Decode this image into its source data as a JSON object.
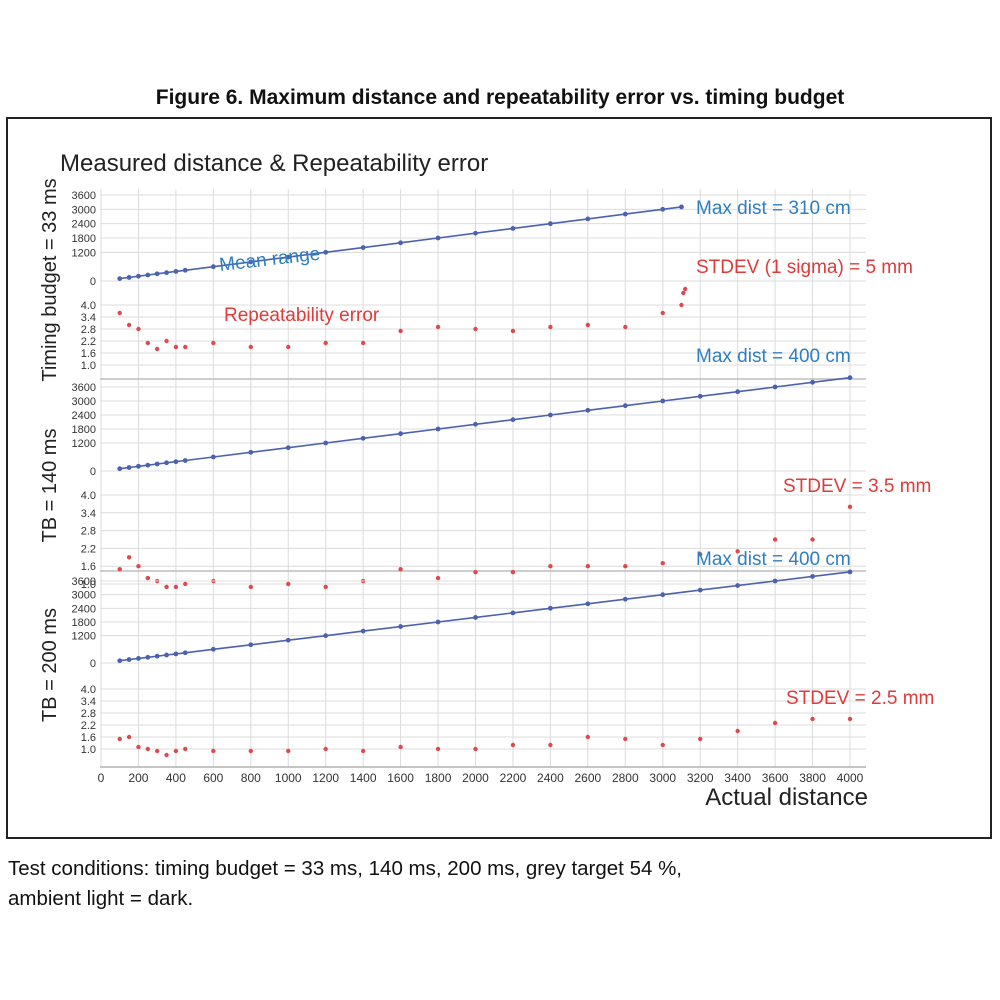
{
  "figure_caption": "Figure 6. Maximum distance and repeatability error vs. timing budget",
  "test_conditions": [
    "Test conditions: timing budget = 33 ms, 140 ms, 200 ms, grey target 54 %,",
    "ambient light = dark."
  ],
  "colors": {
    "range": "#4a62b0",
    "error": "#e0484f",
    "blue_text": "#2f7fc0",
    "red_text": "#e03a3a",
    "grid": "#dcdcdc"
  },
  "chart_data": {
    "type": "scatter",
    "title": "Measured distance & Repeatability error",
    "xlabel": "Actual distance",
    "x_ticks": [
      0,
      200,
      400,
      600,
      800,
      1000,
      1200,
      1400,
      1600,
      1800,
      2000,
      2200,
      2400,
      2600,
      2800,
      3000,
      3200,
      3400,
      3600,
      3800,
      4000
    ],
    "x_range": [
      0,
      4000
    ],
    "grid": true,
    "panels": [
      {
        "ylabel": "Timing budget = 33 ms",
        "range_ticks": [
          "3600",
          "3000",
          "2400",
          "1800",
          "1200",
          "0"
        ],
        "error_ticks": [
          "4.0",
          "3.4",
          "2.8",
          "2.2",
          "1.6",
          "1.0"
        ],
        "series": [
          {
            "label": "Mean range",
            "x": [
              100,
              150,
              200,
              250,
              300,
              350,
              400,
              450,
              600,
              800,
              1000,
              1200,
              1400,
              1600,
              1800,
              2000,
              2200,
              2400,
              2600,
              2800,
              3000,
              3100
            ],
            "y": [
              100,
              150,
              200,
              250,
              300,
              350,
              400,
              450,
              600,
              800,
              1000,
              1200,
              1400,
              1600,
              1800,
              2000,
              2200,
              2400,
              2600,
              2800,
              3000,
              3100
            ]
          },
          {
            "label": "Repeatability error",
            "x": [
              100,
              150,
              200,
              250,
              300,
              350,
              400,
              450,
              600,
              800,
              1000,
              1200,
              1400,
              1600,
              1800,
              2000,
              2200,
              2400,
              2600,
              2800,
              3000,
              3100,
              3110,
              3120
            ],
            "y": [
              3.6,
              3.0,
              2.8,
              2.1,
              1.8,
              2.2,
              1.9,
              1.9,
              2.1,
              1.9,
              1.9,
              2.1,
              2.1,
              2.7,
              2.9,
              2.8,
              2.7,
              2.9,
              3.0,
              2.9,
              3.6,
              4.0,
              4.6,
              4.8
            ]
          }
        ],
        "annotations": {
          "max_dist": "Max dist = 310 cm",
          "stdev": "STDEV (1 sigma) = 5 mm"
        }
      },
      {
        "ylabel": "TB = 140 ms",
        "range_ticks": [
          "3600",
          "3000",
          "2400",
          "1800",
          "1200",
          "0"
        ],
        "error_ticks": [
          "4.0",
          "3.4",
          "2.8",
          "2.2",
          "1.6",
          "1.0"
        ],
        "series": [
          {
            "x": [
              100,
              150,
              200,
              250,
              300,
              350,
              400,
              450,
              600,
              800,
              1000,
              1200,
              1400,
              1600,
              1800,
              2000,
              2200,
              2400,
              2600,
              2800,
              3000,
              3200,
              3400,
              3600,
              3800,
              4000
            ],
            "y": [
              100,
              150,
              200,
              250,
              300,
              350,
              400,
              450,
              600,
              800,
              1000,
              1200,
              1400,
              1600,
              1800,
              2000,
              2200,
              2400,
              2600,
              2800,
              3000,
              3200,
              3400,
              3600,
              3800,
              4000
            ]
          },
          {
            "x": [
              100,
              150,
              200,
              250,
              300,
              350,
              400,
              450,
              600,
              800,
              1000,
              1200,
              1400,
              1600,
              1800,
              2000,
              2200,
              2400,
              2600,
              2800,
              3000,
              3200,
              3400,
              3600,
              3800,
              4000
            ],
            "y": [
              1.5,
              1.9,
              1.6,
              1.2,
              1.1,
              0.9,
              0.9,
              1.0,
              1.1,
              0.9,
              1.0,
              0.9,
              1.1,
              1.5,
              1.2,
              1.4,
              1.4,
              1.6,
              1.6,
              1.6,
              1.7,
              2.0,
              2.1,
              2.5,
              2.5,
              3.6
            ]
          }
        ],
        "annotations": {
          "max_dist": "Max dist = 400 cm",
          "stdev": "STDEV = 3.5 mm"
        }
      },
      {
        "ylabel": "TB = 200 ms",
        "range_ticks": [
          "3600",
          "3000",
          "2400",
          "1800",
          "1200",
          "0"
        ],
        "error_ticks": [
          "4.0",
          "3.4",
          "2.8",
          "2.2",
          "1.6",
          "1.0"
        ],
        "series": [
          {
            "x": [
              100,
              150,
              200,
              250,
              300,
              350,
              400,
              450,
              600,
              800,
              1000,
              1200,
              1400,
              1600,
              1800,
              2000,
              2200,
              2400,
              2600,
              2800,
              3000,
              3200,
              3400,
              3600,
              3800,
              4000
            ],
            "y": [
              100,
              150,
              200,
              250,
              300,
              350,
              400,
              450,
              600,
              800,
              1000,
              1200,
              1400,
              1600,
              1800,
              2000,
              2200,
              2400,
              2600,
              2800,
              3000,
              3200,
              3400,
              3600,
              3800,
              4000
            ]
          },
          {
            "x": [
              100,
              150,
              200,
              250,
              300,
              350,
              400,
              450,
              600,
              800,
              1000,
              1200,
              1400,
              1600,
              1800,
              2000,
              2200,
              2400,
              2600,
              2800,
              3000,
              3200,
              3400,
              3600,
              3800,
              4000
            ],
            "y": [
              1.5,
              1.6,
              1.1,
              1.0,
              0.9,
              0.7,
              0.9,
              1.0,
              0.9,
              0.9,
              0.9,
              1.0,
              0.9,
              1.1,
              1.0,
              1.0,
              1.2,
              1.2,
              1.6,
              1.5,
              1.2,
              1.5,
              1.9,
              2.3,
              2.5,
              2.5
            ]
          }
        ],
        "annotations": {
          "max_dist": "Max dist = 400 cm",
          "stdev": "STDEV =  2.5 mm"
        }
      }
    ]
  }
}
